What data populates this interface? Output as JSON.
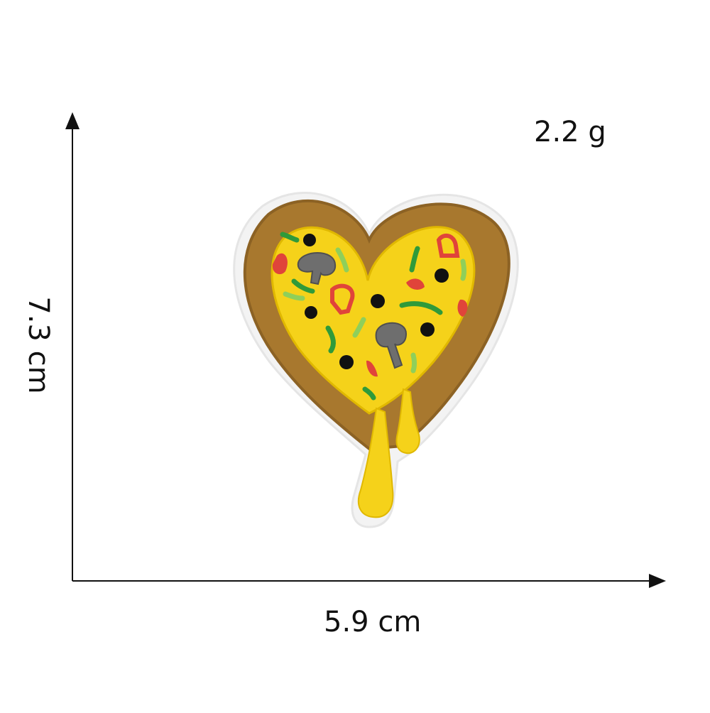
{
  "labels": {
    "weight": "2.2 g",
    "width": "5.9 cm",
    "height": "7.3 cm"
  },
  "colors": {
    "background": "#ffffff",
    "axis": "#111111",
    "patch_border": "#f2f2f2",
    "crust": "#a8782e",
    "crust_dark": "#8c6224",
    "cheese": "#f5d21a",
    "cheese_dark": "#e0b800",
    "olive": "#111111",
    "mushroom": "#6e6e6e",
    "pepper_red": "#e0443a",
    "pepper_green": "#2f9a3a",
    "pepper_light_green": "#8fcf5a"
  },
  "image": {
    "subject": "heart-patch-icon"
  }
}
